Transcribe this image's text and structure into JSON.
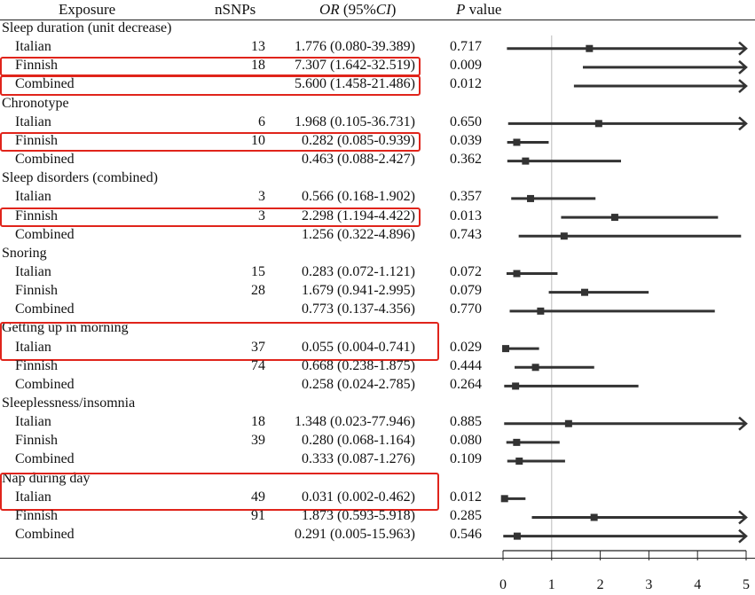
{
  "chart_data": {
    "type": "forest",
    "columns": {
      "exposure": "Exposure",
      "nsnps": "nSNPs",
      "or_ci_italic": "OR",
      "or_ci_mid": " (95%",
      "or_ci_italic2": "CI",
      "or_ci_end": ")",
      "p_italic": "P",
      "p_rest": " value"
    },
    "xlim": [
      0,
      5
    ],
    "xticks": [
      "0",
      "1",
      "2",
      "3",
      "4",
      "5"
    ],
    "reference_line": 1,
    "groups": [
      {
        "name": "Sleep duration (unit decrease)",
        "highlight_group": false,
        "rows": [
          {
            "label": "Italian",
            "nsnps": "13",
            "or_text": "1.776 (0.080-39.389)",
            "p": "0.717",
            "or": 1.776,
            "lo": 0.08,
            "hi": 39.389,
            "highlight": false
          },
          {
            "label": "Finnish",
            "nsnps": "18",
            "or_text": "7.307 (1.642-32.519)",
            "p": "0.009",
            "or": 7.307,
            "lo": 1.642,
            "hi": 32.519,
            "highlight": true
          },
          {
            "label": "Combined",
            "nsnps": "",
            "or_text": "5.600 (1.458-21.486)",
            "p": "0.012",
            "or": 5.6,
            "lo": 1.458,
            "hi": 21.486,
            "highlight": true
          }
        ]
      },
      {
        "name": "Chronotype",
        "highlight_group": false,
        "rows": [
          {
            "label": "Italian",
            "nsnps": "6",
            "or_text": "1.968 (0.105-36.731)",
            "p": "0.650",
            "or": 1.968,
            "lo": 0.105,
            "hi": 36.731,
            "highlight": false
          },
          {
            "label": "Finnish",
            "nsnps": "10",
            "or_text": "0.282 (0.085-0.939)",
            "p": "0.039",
            "or": 0.282,
            "lo": 0.085,
            "hi": 0.939,
            "highlight": true
          },
          {
            "label": "Combined",
            "nsnps": "",
            "or_text": "0.463 (0.088-2.427)",
            "p": "0.362",
            "or": 0.463,
            "lo": 0.088,
            "hi": 2.427,
            "highlight": false
          }
        ]
      },
      {
        "name": "Sleep disorders (combined)",
        "highlight_group": false,
        "rows": [
          {
            "label": "Italian",
            "nsnps": "3",
            "or_text": "0.566 (0.168-1.902)",
            "p": "0.357",
            "or": 0.566,
            "lo": 0.168,
            "hi": 1.902,
            "highlight": false
          },
          {
            "label": "Finnish",
            "nsnps": "3",
            "or_text": "2.298 (1.194-4.422)",
            "p": "0.013",
            "or": 2.298,
            "lo": 1.194,
            "hi": 4.422,
            "highlight": true
          },
          {
            "label": "Combined",
            "nsnps": "",
            "or_text": "1.256 (0.322-4.896)",
            "p": "0.743",
            "or": 1.256,
            "lo": 0.322,
            "hi": 4.896,
            "highlight": false
          }
        ]
      },
      {
        "name": "Snoring",
        "highlight_group": false,
        "rows": [
          {
            "label": "Italian",
            "nsnps": "15",
            "or_text": "0.283 (0.072-1.121)",
            "p": "0.072",
            "or": 0.283,
            "lo": 0.072,
            "hi": 1.121,
            "highlight": false
          },
          {
            "label": "Finnish",
            "nsnps": "28",
            "or_text": "1.679 (0.941-2.995)",
            "p": "0.079",
            "or": 1.679,
            "lo": 0.941,
            "hi": 2.995,
            "highlight": false
          },
          {
            "label": "Combined",
            "nsnps": "",
            "or_text": "0.773 (0.137-4.356)",
            "p": "0.770",
            "or": 0.773,
            "lo": 0.137,
            "hi": 4.356,
            "highlight": false
          }
        ]
      },
      {
        "name": "Getting up in morning",
        "highlight_group": true,
        "rows": [
          {
            "label": "Italian",
            "nsnps": "37",
            "or_text": "0.055 (0.004-0.741)",
            "p": "0.029",
            "or": 0.055,
            "lo": 0.004,
            "hi": 0.741,
            "highlight": false
          },
          {
            "label": "Finnish",
            "nsnps": "74",
            "or_text": "0.668 (0.238-1.875)",
            "p": "0.444",
            "or": 0.668,
            "lo": 0.238,
            "hi": 1.875,
            "highlight": false
          },
          {
            "label": "Combined",
            "nsnps": "",
            "or_text": "0.258 (0.024-2.785)",
            "p": "0.264",
            "or": 0.258,
            "lo": 0.024,
            "hi": 2.785,
            "highlight": false
          }
        ]
      },
      {
        "name": "Sleeplessness/insomnia",
        "highlight_group": false,
        "rows": [
          {
            "label": "Italian",
            "nsnps": "18",
            "or_text": "1.348 (0.023-77.946)",
            "p": "0.885",
            "or": 1.348,
            "lo": 0.023,
            "hi": 77.946,
            "highlight": false
          },
          {
            "label": "Finnish",
            "nsnps": "39",
            "or_text": "0.280 (0.068-1.164)",
            "p": "0.080",
            "or": 0.28,
            "lo": 0.068,
            "hi": 1.164,
            "highlight": false
          },
          {
            "label": "Combined",
            "nsnps": "",
            "or_text": "0.333 (0.087-1.276)",
            "p": "0.109",
            "or": 0.333,
            "lo": 0.087,
            "hi": 1.276,
            "highlight": false
          }
        ]
      },
      {
        "name": "Nap during day",
        "highlight_group": true,
        "rows": [
          {
            "label": "Italian",
            "nsnps": "49",
            "or_text": "0.031 (0.002-0.462)",
            "p": "0.012",
            "or": 0.031,
            "lo": 0.002,
            "hi": 0.462,
            "highlight": false
          },
          {
            "label": "Finnish",
            "nsnps": "91",
            "or_text": "1.873 (0.593-5.918)",
            "p": "0.285",
            "or": 1.873,
            "lo": 0.593,
            "hi": 5.918,
            "highlight": false
          },
          {
            "label": "Combined",
            "nsnps": "",
            "or_text": "0.291 (0.005-15.963)",
            "p": "0.546",
            "or": 0.291,
            "lo": 0.005,
            "hi": 15.963,
            "highlight": false
          }
        ]
      }
    ]
  }
}
